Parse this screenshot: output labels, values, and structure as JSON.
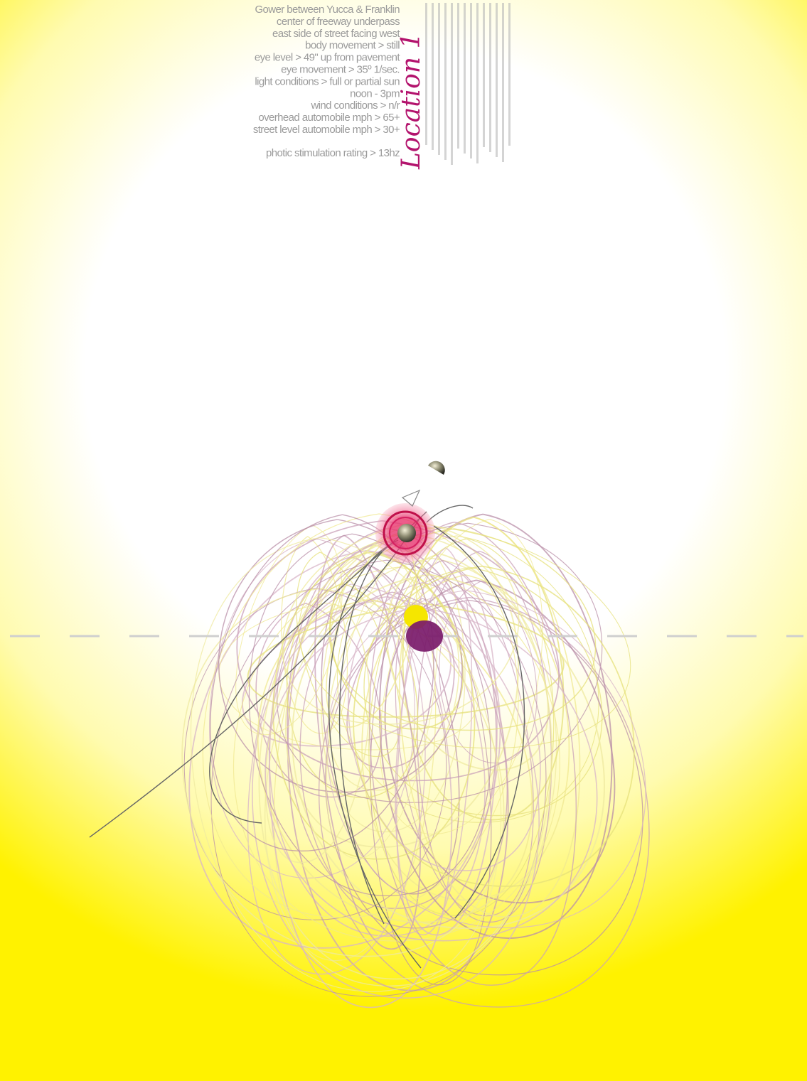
{
  "info": {
    "lines": [
      "Gower between Yucca & Franklin",
      "center of freeway underpass",
      "east side of street   facing west",
      "body movement > still",
      "eye level > 49\" up from pavement",
      "eye movement > 35º 1/sec.",
      "light conditions > full or partial sun",
      "noon - 3pm",
      "wind conditions > n/r",
      "overhead automobile mph > 65+",
      "street level automobile mph > 30+"
    ],
    "rating": "photic stimulation rating > 13hz"
  },
  "title": "Location 1"
}
